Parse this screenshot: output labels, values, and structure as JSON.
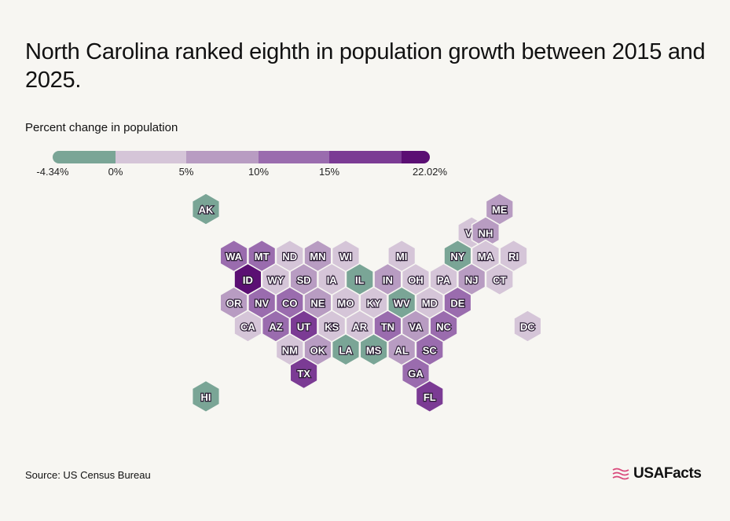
{
  "title": "North Carolina ranked eighth in population growth between 2015 and 2025.",
  "legend": {
    "title": "Percent change in population",
    "ticks": [
      "-4.34%",
      "0%",
      "5%",
      "10%",
      "15%",
      "22.02%"
    ],
    "colors": [
      "#7aa596",
      "#d5c5d8",
      "#b89cc2",
      "#9a6cae",
      "#7b3b94",
      "#5b0f73"
    ]
  },
  "source": "Source: US Census Bureau",
  "brand": "USAFacts",
  "colors": {
    "background": "#f7f6f2",
    "label_outline": "#2a1c33",
    "brand_accent": "#d9487a"
  },
  "chart_data": {
    "type": "hex-tile-map",
    "measure": "Percent change in population",
    "scale_bins": [
      "< 0%",
      "0% - 5%",
      "5% - 10%",
      "10% - 15%",
      "15% - 20%",
      "> 20%"
    ],
    "states": [
      {
        "abbr": "AK",
        "bin": 0,
        "col": 0,
        "row": 0
      },
      {
        "abbr": "ME",
        "bin": 2,
        "col": 21,
        "row": 0
      },
      {
        "abbr": "VT",
        "bin": 1,
        "col": 19,
        "row": 1
      },
      {
        "abbr": "NH",
        "bin": 2,
        "col": 20,
        "row": 1
      },
      {
        "abbr": "WA",
        "bin": 3,
        "col": 2,
        "row": 2
      },
      {
        "abbr": "MT",
        "bin": 3,
        "col": 4,
        "row": 2
      },
      {
        "abbr": "ND",
        "bin": 1,
        "col": 6,
        "row": 2
      },
      {
        "abbr": "MN",
        "bin": 2,
        "col": 8,
        "row": 2
      },
      {
        "abbr": "WI",
        "bin": 1,
        "col": 10,
        "row": 2
      },
      {
        "abbr": "MI",
        "bin": 1,
        "col": 14,
        "row": 2
      },
      {
        "abbr": "NY",
        "bin": 0,
        "col": 18,
        "row": 2
      },
      {
        "abbr": "MA",
        "bin": 1,
        "col": 20,
        "row": 2
      },
      {
        "abbr": "RI",
        "bin": 1,
        "col": 22,
        "row": 2
      },
      {
        "abbr": "ID",
        "bin": 5,
        "col": 3,
        "row": 3
      },
      {
        "abbr": "WY",
        "bin": 1,
        "col": 5,
        "row": 3
      },
      {
        "abbr": "SD",
        "bin": 2,
        "col": 7,
        "row": 3
      },
      {
        "abbr": "IA",
        "bin": 1,
        "col": 9,
        "row": 3
      },
      {
        "abbr": "IL",
        "bin": 0,
        "col": 11,
        "row": 3
      },
      {
        "abbr": "IN",
        "bin": 2,
        "col": 13,
        "row": 3
      },
      {
        "abbr": "OH",
        "bin": 1,
        "col": 15,
        "row": 3
      },
      {
        "abbr": "PA",
        "bin": 1,
        "col": 17,
        "row": 3
      },
      {
        "abbr": "NJ",
        "bin": 2,
        "col": 19,
        "row": 3
      },
      {
        "abbr": "CT",
        "bin": 1,
        "col": 21,
        "row": 3
      },
      {
        "abbr": "OR",
        "bin": 2,
        "col": 2,
        "row": 4
      },
      {
        "abbr": "NV",
        "bin": 3,
        "col": 4,
        "row": 4
      },
      {
        "abbr": "CO",
        "bin": 3,
        "col": 6,
        "row": 4
      },
      {
        "abbr": "NE",
        "bin": 2,
        "col": 8,
        "row": 4
      },
      {
        "abbr": "MO",
        "bin": 1,
        "col": 10,
        "row": 4
      },
      {
        "abbr": "KY",
        "bin": 1,
        "col": 12,
        "row": 4
      },
      {
        "abbr": "WV",
        "bin": 0,
        "col": 14,
        "row": 4
      },
      {
        "abbr": "MD",
        "bin": 1,
        "col": 16,
        "row": 4
      },
      {
        "abbr": "DE",
        "bin": 3,
        "col": 18,
        "row": 4
      },
      {
        "abbr": "CA",
        "bin": 1,
        "col": 3,
        "row": 5
      },
      {
        "abbr": "AZ",
        "bin": 3,
        "col": 5,
        "row": 5
      },
      {
        "abbr": "UT",
        "bin": 4,
        "col": 7,
        "row": 5
      },
      {
        "abbr": "KS",
        "bin": 1,
        "col": 9,
        "row": 5
      },
      {
        "abbr": "AR",
        "bin": 1,
        "col": 11,
        "row": 5
      },
      {
        "abbr": "TN",
        "bin": 3,
        "col": 13,
        "row": 5
      },
      {
        "abbr": "VA",
        "bin": 2,
        "col": 15,
        "row": 5
      },
      {
        "abbr": "NC",
        "bin": 3,
        "col": 17,
        "row": 5
      },
      {
        "abbr": "DC",
        "bin": 1,
        "col": 23,
        "row": 5
      },
      {
        "abbr": "NM",
        "bin": 1,
        "col": 6,
        "row": 6
      },
      {
        "abbr": "OK",
        "bin": 2,
        "col": 8,
        "row": 6
      },
      {
        "abbr": "LA",
        "bin": 0,
        "col": 10,
        "row": 6
      },
      {
        "abbr": "MS",
        "bin": 0,
        "col": 12,
        "row": 6
      },
      {
        "abbr": "AL",
        "bin": 2,
        "col": 14,
        "row": 6
      },
      {
        "abbr": "SC",
        "bin": 3,
        "col": 16,
        "row": 6
      },
      {
        "abbr": "TX",
        "bin": 4,
        "col": 7,
        "row": 7
      },
      {
        "abbr": "GA",
        "bin": 3,
        "col": 15,
        "row": 7
      },
      {
        "abbr": "HI",
        "bin": 0,
        "col": 0,
        "row": 8
      },
      {
        "abbr": "FL",
        "bin": 4,
        "col": 16,
        "row": 8
      }
    ]
  }
}
